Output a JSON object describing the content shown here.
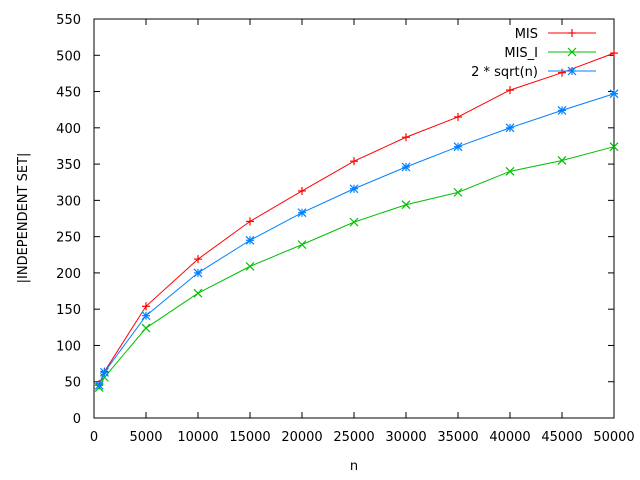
{
  "chart_data": {
    "type": "line",
    "title": "",
    "xlabel": "n",
    "ylabel": "|INDEPENDENT SET|",
    "xlim": [
      0,
      50000
    ],
    "ylim": [
      0,
      550
    ],
    "x_ticks": [
      0,
      5000,
      10000,
      15000,
      20000,
      25000,
      30000,
      35000,
      40000,
      45000,
      50000
    ],
    "y_ticks": [
      0,
      50,
      100,
      150,
      200,
      250,
      300,
      350,
      400,
      450,
      500,
      550
    ],
    "grid": false,
    "legend_position": "top-right",
    "x": [
      500,
      1000,
      5000,
      10000,
      15000,
      20000,
      25000,
      30000,
      35000,
      40000,
      45000,
      50000
    ],
    "series": [
      {
        "name": "MIS",
        "color": "#ff0000",
        "marker": "plus",
        "values": [
          47,
          64,
          154,
          219,
          271,
          313,
          354,
          387,
          415,
          452,
          476,
          503
        ]
      },
      {
        "name": "MIS_I",
        "color": "#00c000",
        "marker": "cross",
        "values": [
          42,
          56,
          124,
          172,
          209,
          239,
          270,
          294,
          311,
          340,
          355,
          374
        ]
      },
      {
        "name": "2 * sqrt(n)",
        "color": "#0080ff",
        "marker": "star",
        "values": [
          45,
          63,
          141,
          200,
          245,
          283,
          316,
          346,
          374,
          400,
          424,
          447
        ]
      }
    ]
  }
}
